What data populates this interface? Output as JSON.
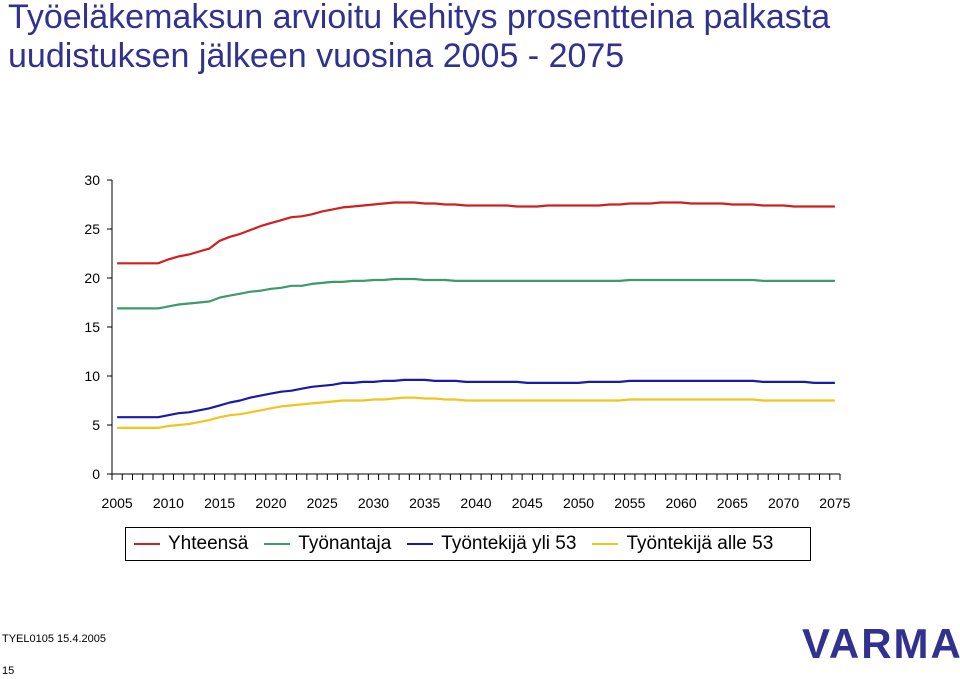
{
  "title": "Työeläkemaksun arvioitu kehitys prosentteina palkasta uudistuksen jälkeen vuosina 2005 - 2075",
  "footer": {
    "code": "TYEL0105 15.4.2005",
    "page": "15"
  },
  "logo": {
    "text": "VARMA",
    "color": "#31318f"
  },
  "chart_data": {
    "type": "line",
    "title": "Työeläkemaksun arvioitu kehitys prosentteina palkasta uudistuksen jälkeen vuosina 2005 - 2075",
    "xlabel": "",
    "ylabel": "",
    "ylim": [
      0,
      30
    ],
    "yticks": [
      "0",
      "5",
      "10",
      "15",
      "20",
      "25",
      "30"
    ],
    "xticks": [
      "2005",
      "2010",
      "2015",
      "2020",
      "2025",
      "2030",
      "2035",
      "2040",
      "2045",
      "2050",
      "2055",
      "2060",
      "2065",
      "2070",
      "2075"
    ],
    "x": [
      2005,
      2006,
      2007,
      2008,
      2009,
      2010,
      2011,
      2012,
      2013,
      2014,
      2015,
      2016,
      2017,
      2018,
      2019,
      2020,
      2021,
      2022,
      2023,
      2024,
      2025,
      2026,
      2027,
      2028,
      2029,
      2030,
      2031,
      2032,
      2033,
      2034,
      2035,
      2036,
      2037,
      2038,
      2039,
      2040,
      2041,
      2042,
      2043,
      2044,
      2045,
      2046,
      2047,
      2048,
      2049,
      2050,
      2051,
      2052,
      2053,
      2054,
      2055,
      2056,
      2057,
      2058,
      2059,
      2060,
      2061,
      2062,
      2063,
      2064,
      2065,
      2066,
      2067,
      2068,
      2069,
      2070,
      2071,
      2072,
      2073,
      2074,
      2075
    ],
    "series": [
      {
        "name": "Yhteensä",
        "color": "#d21e1e",
        "values": [
          21.5,
          21.5,
          21.5,
          21.5,
          21.5,
          21.9,
          22.2,
          22.4,
          22.7,
          23.0,
          23.8,
          24.2,
          24.5,
          24.9,
          25.3,
          25.6,
          25.9,
          26.2,
          26.3,
          26.5,
          26.8,
          27.0,
          27.2,
          27.3,
          27.4,
          27.5,
          27.6,
          27.7,
          27.7,
          27.7,
          27.6,
          27.6,
          27.5,
          27.5,
          27.4,
          27.4,
          27.4,
          27.4,
          27.4,
          27.3,
          27.3,
          27.3,
          27.4,
          27.4,
          27.4,
          27.4,
          27.4,
          27.4,
          27.5,
          27.5,
          27.6,
          27.6,
          27.6,
          27.7,
          27.7,
          27.7,
          27.6,
          27.6,
          27.6,
          27.6,
          27.5,
          27.5,
          27.5,
          27.4,
          27.4,
          27.4,
          27.3,
          27.3,
          27.3,
          27.3,
          27.3
        ]
      },
      {
        "name": "Työnantaja",
        "color": "#3d9a6a",
        "values": [
          16.9,
          16.9,
          16.9,
          16.9,
          16.9,
          17.1,
          17.3,
          17.4,
          17.5,
          17.6,
          18.0,
          18.2,
          18.4,
          18.6,
          18.7,
          18.9,
          19.0,
          19.2,
          19.2,
          19.4,
          19.5,
          19.6,
          19.6,
          19.7,
          19.7,
          19.8,
          19.8,
          19.9,
          19.9,
          19.9,
          19.8,
          19.8,
          19.8,
          19.7,
          19.7,
          19.7,
          19.7,
          19.7,
          19.7,
          19.7,
          19.7,
          19.7,
          19.7,
          19.7,
          19.7,
          19.7,
          19.7,
          19.7,
          19.7,
          19.7,
          19.8,
          19.8,
          19.8,
          19.8,
          19.8,
          19.8,
          19.8,
          19.8,
          19.8,
          19.8,
          19.8,
          19.8,
          19.8,
          19.7,
          19.7,
          19.7,
          19.7,
          19.7,
          19.7,
          19.7,
          19.7
        ]
      },
      {
        "name": "Työntekijä yli 53",
        "color": "#1a1aa8",
        "values": [
          5.8,
          5.8,
          5.8,
          5.8,
          5.8,
          6.0,
          6.2,
          6.3,
          6.5,
          6.7,
          7.0,
          7.3,
          7.5,
          7.8,
          8.0,
          8.2,
          8.4,
          8.5,
          8.7,
          8.9,
          9.0,
          9.1,
          9.3,
          9.3,
          9.4,
          9.4,
          9.5,
          9.5,
          9.6,
          9.6,
          9.6,
          9.5,
          9.5,
          9.5,
          9.4,
          9.4,
          9.4,
          9.4,
          9.4,
          9.4,
          9.3,
          9.3,
          9.3,
          9.3,
          9.3,
          9.3,
          9.4,
          9.4,
          9.4,
          9.4,
          9.5,
          9.5,
          9.5,
          9.5,
          9.5,
          9.5,
          9.5,
          9.5,
          9.5,
          9.5,
          9.5,
          9.5,
          9.5,
          9.4,
          9.4,
          9.4,
          9.4,
          9.4,
          9.3,
          9.3,
          9.3
        ]
      },
      {
        "name": "Työntekijä alle 53",
        "color": "#f2c41e",
        "values": [
          4.7,
          4.7,
          4.7,
          4.7,
          4.7,
          4.9,
          5.0,
          5.1,
          5.3,
          5.5,
          5.8,
          6.0,
          6.1,
          6.3,
          6.5,
          6.7,
          6.9,
          7.0,
          7.1,
          7.2,
          7.3,
          7.4,
          7.5,
          7.5,
          7.5,
          7.6,
          7.6,
          7.7,
          7.8,
          7.8,
          7.7,
          7.7,
          7.6,
          7.6,
          7.5,
          7.5,
          7.5,
          7.5,
          7.5,
          7.5,
          7.5,
          7.5,
          7.5,
          7.5,
          7.5,
          7.5,
          7.5,
          7.5,
          7.5,
          7.5,
          7.6,
          7.6,
          7.6,
          7.6,
          7.6,
          7.6,
          7.6,
          7.6,
          7.6,
          7.6,
          7.6,
          7.6,
          7.6,
          7.5,
          7.5,
          7.5,
          7.5,
          7.5,
          7.5,
          7.5,
          7.5
        ]
      }
    ],
    "grid": false,
    "legend": "bottom"
  }
}
